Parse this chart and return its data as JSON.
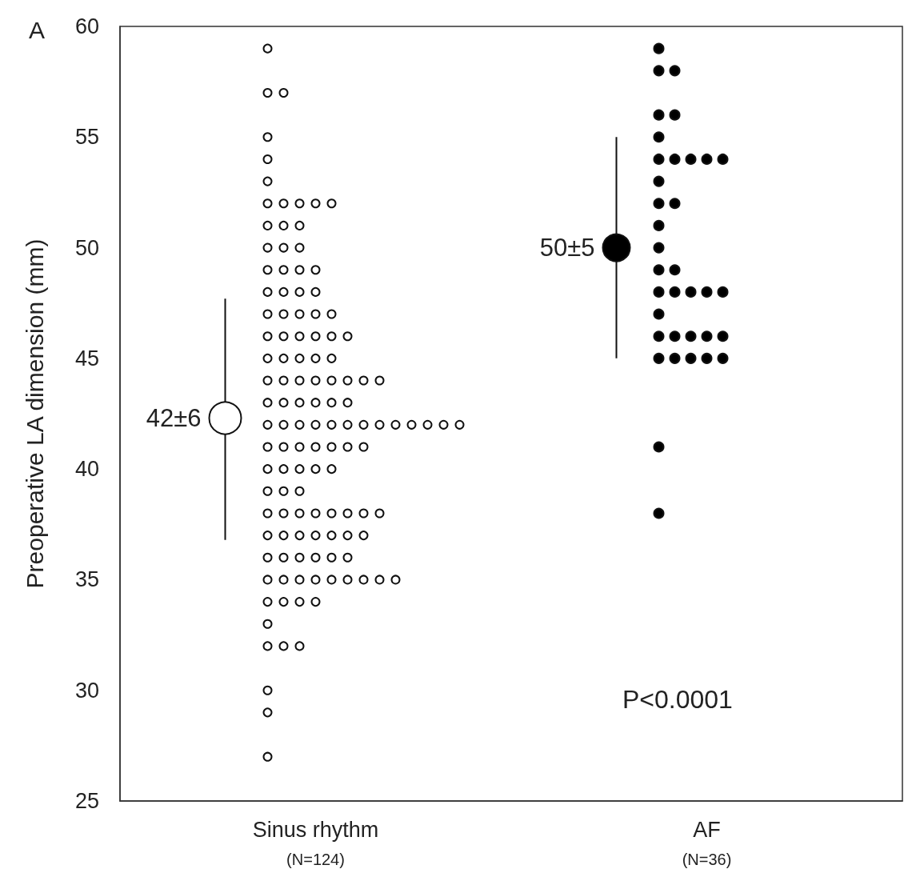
{
  "chart_data": {
    "type": "scatter",
    "ylabel": "Preoperative LA dimension (mm)",
    "annotations": [
      "A",
      "P<0.0001"
    ],
    "categories": [
      "Sinus rhythm\n(N=124)",
      "AF\n(N=36)"
    ],
    "ylim": [
      25,
      60
    ],
    "yticks": [
      25,
      30,
      35,
      40,
      45,
      50,
      55,
      60
    ],
    "grid": false,
    "marker": "circle",
    "series": [
      {
        "color": "#ffffff",
        "x": [
          "Sinus rhythm\n(N=124)",
          "Sinus rhythm\n(N=124)",
          "Sinus rhythm\n(N=124)",
          "Sinus rhythm\n(N=124)",
          "Sinus rhythm\n(N=124)",
          "Sinus rhythm\n(N=124)",
          "Sinus rhythm\n(N=124)",
          "Sinus rhythm\n(N=124)",
          "Sinus rhythm\n(N=124)",
          "Sinus rhythm\n(N=124)",
          "Sinus rhythm\n(N=124)",
          "Sinus rhythm\n(N=124)",
          "Sinus rhythm\n(N=124)",
          "Sinus rhythm\n(N=124)",
          "Sinus rhythm\n(N=124)",
          "Sinus rhythm\n(N=124)",
          "Sinus rhythm\n(N=124)",
          "Sinus rhythm\n(N=124)",
          "Sinus rhythm\n(N=124)",
          "Sinus rhythm\n(N=124)",
          "Sinus rhythm\n(N=124)",
          "Sinus rhythm\n(N=124)",
          "Sinus rhythm\n(N=124)",
          "Sinus rhythm\n(N=124)",
          "Sinus rhythm\n(N=124)",
          "Sinus rhythm\n(N=124)",
          "Sinus rhythm\n(N=124)",
          "Sinus rhythm\n(N=124)",
          "Sinus rhythm\n(N=124)",
          "Sinus rhythm\n(N=124)",
          "Sinus rhythm\n(N=124)",
          "Sinus rhythm\n(N=124)",
          "Sinus rhythm\n(N=124)",
          "Sinus rhythm\n(N=124)",
          "Sinus rhythm\n(N=124)",
          "Sinus rhythm\n(N=124)",
          "Sinus rhythm\n(N=124)",
          "Sinus rhythm\n(N=124)",
          "Sinus rhythm\n(N=124)",
          "Sinus rhythm\n(N=124)",
          "Sinus rhythm\n(N=124)",
          "Sinus rhythm\n(N=124)",
          "Sinus rhythm\n(N=124)",
          "Sinus rhythm\n(N=124)",
          "Sinus rhythm\n(N=124)",
          "Sinus rhythm\n(N=124)",
          "Sinus rhythm\n(N=124)",
          "Sinus rhythm\n(N=124)",
          "Sinus rhythm\n(N=124)",
          "Sinus rhythm\n(N=124)",
          "Sinus rhythm\n(N=124)",
          "Sinus rhythm\n(N=124)",
          "Sinus rhythm\n(N=124)",
          "Sinus rhythm\n(N=124)",
          "Sinus rhythm\n(N=124)",
          "Sinus rhythm\n(N=124)",
          "Sinus rhythm\n(N=124)",
          "Sinus rhythm\n(N=124)",
          "Sinus rhythm\n(N=124)",
          "Sinus rhythm\n(N=124)",
          "Sinus rhythm\n(N=124)",
          "Sinus rhythm\n(N=124)",
          "Sinus rhythm\n(N=124)",
          "Sinus rhythm\n(N=124)",
          "Sinus rhythm\n(N=124)",
          "Sinus rhythm\n(N=124)",
          "Sinus rhythm\n(N=124)",
          "Sinus rhythm\n(N=124)",
          "Sinus rhythm\n(N=124)",
          "Sinus rhythm\n(N=124)",
          "Sinus rhythm\n(N=124)",
          "Sinus rhythm\n(N=124)",
          "Sinus rhythm\n(N=124)",
          "Sinus rhythm\n(N=124)",
          "Sinus rhythm\n(N=124)",
          "Sinus rhythm\n(N=124)",
          "Sinus rhythm\n(N=124)",
          "Sinus rhythm\n(N=124)",
          "Sinus rhythm\n(N=124)",
          "Sinus rhythm\n(N=124)",
          "Sinus rhythm\n(N=124)",
          "Sinus rhythm\n(N=124)",
          "Sinus rhythm\n(N=124)",
          "Sinus rhythm\n(N=124)",
          "Sinus rhythm\n(N=124)",
          "Sinus rhythm\n(N=124)",
          "Sinus rhythm\n(N=124)",
          "Sinus rhythm\n(N=124)",
          "Sinus rhythm\n(N=124)",
          "Sinus rhythm\n(N=124)",
          "Sinus rhythm\n(N=124)",
          "Sinus rhythm\n(N=124)",
          "Sinus rhythm\n(N=124)",
          "Sinus rhythm\n(N=124)",
          "Sinus rhythm\n(N=124)",
          "Sinus rhythm\n(N=124)",
          "Sinus rhythm\n(N=124)",
          "Sinus rhythm\n(N=124)",
          "Sinus rhythm\n(N=124)",
          "Sinus rhythm\n(N=124)",
          "Sinus rhythm\n(N=124)",
          "Sinus rhythm\n(N=124)",
          "Sinus rhythm\n(N=124)",
          "Sinus rhythm\n(N=124)",
          "Sinus rhythm\n(N=124)",
          "Sinus rhythm\n(N=124)",
          "Sinus rhythm\n(N=124)",
          "Sinus rhythm\n(N=124)",
          "Sinus rhythm\n(N=124)",
          "Sinus rhythm\n(N=124)",
          "Sinus rhythm\n(N=124)",
          "Sinus rhythm\n(N=124)",
          "Sinus rhythm\n(N=124)",
          "Sinus rhythm\n(N=124)",
          "Sinus rhythm\n(N=124)",
          "Sinus rhythm\n(N=124)",
          "Sinus rhythm\n(N=124)",
          "Sinus rhythm\n(N=124)",
          "Sinus rhythm\n(N=124)",
          "Sinus rhythm\n(N=124)",
          "Sinus rhythm\n(N=124)",
          "Sinus rhythm\n(N=124)",
          "Sinus rhythm\n(N=124)",
          "Sinus rhythm\n(N=124)"
        ],
        "values": [
          59,
          57,
          57,
          55,
          54,
          53,
          52,
          52,
          52,
          52,
          52,
          51,
          51,
          51,
          50,
          50,
          50,
          49,
          49,
          49,
          49,
          48,
          48,
          48,
          48,
          47,
          47,
          47,
          47,
          47,
          46,
          46,
          46,
          46,
          46,
          46,
          45,
          45,
          45,
          45,
          45,
          44,
          44,
          44,
          44,
          44,
          44,
          44,
          44,
          43,
          43,
          43,
          43,
          43,
          43,
          42,
          42,
          42,
          42,
          42,
          42,
          42,
          42,
          42,
          42,
          42,
          42,
          42,
          41,
          41,
          41,
          41,
          41,
          41,
          41,
          40,
          40,
          40,
          40,
          40,
          39,
          39,
          39,
          38,
          38,
          38,
          38,
          38,
          38,
          38,
          38,
          37,
          37,
          37,
          37,
          37,
          37,
          37,
          36,
          36,
          36,
          36,
          36,
          36,
          35,
          35,
          35,
          35,
          35,
          35,
          35,
          35,
          35,
          34,
          34,
          34,
          34,
          33,
          32,
          32,
          32,
          30,
          29,
          27
        ]
      },
      {
        "color": "#000000",
        "x": [
          "AF\n(N=36)",
          "AF\n(N=36)",
          "AF\n(N=36)",
          "AF\n(N=36)",
          "AF\n(N=36)",
          "AF\n(N=36)",
          "AF\n(N=36)",
          "AF\n(N=36)",
          "AF\n(N=36)",
          "AF\n(N=36)",
          "AF\n(N=36)",
          "AF\n(N=36)",
          "AF\n(N=36)",
          "AF\n(N=36)",
          "AF\n(N=36)",
          "AF\n(N=36)",
          "AF\n(N=36)",
          "AF\n(N=36)",
          "AF\n(N=36)",
          "AF\n(N=36)",
          "AF\n(N=36)",
          "AF\n(N=36)",
          "AF\n(N=36)",
          "AF\n(N=36)",
          "AF\n(N=36)",
          "AF\n(N=36)",
          "AF\n(N=36)",
          "AF\n(N=36)",
          "AF\n(N=36)",
          "AF\n(N=36)",
          "AF\n(N=36)",
          "AF\n(N=36)",
          "AF\n(N=36)",
          "AF\n(N=36)",
          "AF\n(N=36)",
          "AF\n(N=36)"
        ],
        "values": [
          59,
          58,
          58,
          56,
          56,
          55,
          54,
          54,
          54,
          54,
          54,
          53,
          52,
          52,
          51,
          50,
          49,
          49,
          48,
          48,
          48,
          48,
          48,
          47,
          46,
          46,
          46,
          46,
          46,
          45,
          45,
          45,
          45,
          45,
          41,
          38
        ]
      },
      {
        "color": "#ffffff",
        "x": [
          "Sinus rhythm\n(N=124)"
        ],
        "values": [
          42.3
        ],
        "errors": [
          [
            36.8,
            47.7
          ]
        ],
        "value_labels": [
          "42±6"
        ]
      },
      {
        "color": "#000000",
        "x": [
          "AF\n(N=36)"
        ],
        "values": [
          50.0
        ],
        "errors": [
          [
            45.0,
            55.0
          ]
        ],
        "value_labels": [
          "50±5"
        ]
      }
    ]
  }
}
